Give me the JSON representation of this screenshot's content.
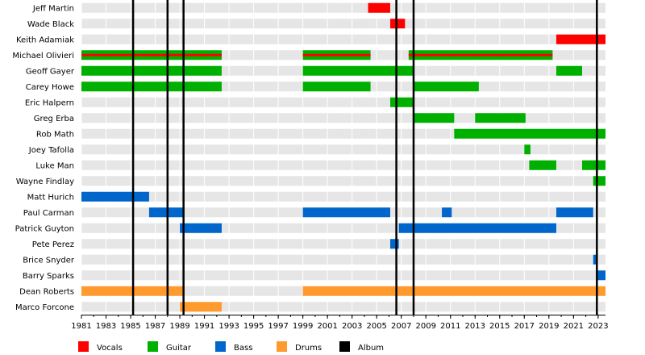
{
  "chart_data": {
    "type": "timeline",
    "title": "",
    "xlabel": "",
    "ylabel": "",
    "xlim": [
      1981,
      2023.6
    ],
    "x_ticks": [
      "1981",
      "1983",
      "1985",
      "1987",
      "1989",
      "1991",
      "1993",
      "1995",
      "1997",
      "1999",
      "2001",
      "2003",
      "2005",
      "2007",
      "2009",
      "2011",
      "2013",
      "2015",
      "2017",
      "2019",
      "2021",
      "2023"
    ],
    "members": [
      "Jeff Martin",
      "Wade Black",
      "Keith Adamiak",
      "Michael Olivieri",
      "Geoff Gayer",
      "Carey Howe",
      "Eric Halpern",
      "Greg Erba",
      "Rob Math",
      "Joey Tafolla",
      "Luke Man",
      "Wayne Findlay",
      "Matt Hurich",
      "Paul Carman",
      "Patrick Guyton",
      "Pete Perez",
      "Brice Snyder",
      "Barry Sparks",
      "Dean Roberts",
      "Marco Forcone"
    ],
    "roles": {
      "vocals": {
        "label": "Vocals",
        "color": "#ff0000"
      },
      "guitar": {
        "label": "Guitar",
        "color": "#00b000"
      },
      "bass": {
        "label": "Bass",
        "color": "#0066cc"
      },
      "drums": {
        "label": "Drums",
        "color": "#ff9a2e"
      },
      "album": {
        "label": "Album",
        "color": "#000000"
      }
    },
    "legend_order": [
      "vocals",
      "guitar",
      "bass",
      "drums",
      "album"
    ],
    "legend_position": "bottom",
    "albums": [
      1985.2,
      1988.0,
      1989.3,
      2006.6,
      2008.0,
      2022.9
    ],
    "bars": [
      {
        "member": 0,
        "role": "vocals",
        "start": 2004.3,
        "end": 2006.1
      },
      {
        "member": 1,
        "role": "vocals",
        "start": 2006.1,
        "end": 2007.3
      },
      {
        "member": 2,
        "role": "vocals",
        "start": 2019.6,
        "end": 2023.6
      },
      {
        "member": 3,
        "role": "guitar",
        "start": 1981.0,
        "end": 1992.4,
        "secondary": "vocals"
      },
      {
        "member": 3,
        "role": "guitar",
        "start": 1999.0,
        "end": 2004.5,
        "secondary": "vocals"
      },
      {
        "member": 3,
        "role": "guitar",
        "start": 2007.6,
        "end": 2019.3,
        "secondary": "vocals"
      },
      {
        "member": 4,
        "role": "guitar",
        "start": 1981.0,
        "end": 1992.4
      },
      {
        "member": 4,
        "role": "guitar",
        "start": 1999.0,
        "end": 2008.0
      },
      {
        "member": 4,
        "role": "guitar",
        "start": 2019.6,
        "end": 2021.7
      },
      {
        "member": 5,
        "role": "guitar",
        "start": 1981.0,
        "end": 1992.4
      },
      {
        "member": 5,
        "role": "guitar",
        "start": 1999.0,
        "end": 2004.5
      },
      {
        "member": 5,
        "role": "guitar",
        "start": 2008.0,
        "end": 2013.3
      },
      {
        "member": 6,
        "role": "guitar",
        "start": 2006.1,
        "end": 2008.0
      },
      {
        "member": 7,
        "role": "guitar",
        "start": 2008.0,
        "end": 2011.3
      },
      {
        "member": 7,
        "role": "guitar",
        "start": 2013.0,
        "end": 2017.1
      },
      {
        "member": 8,
        "role": "guitar",
        "start": 2011.3,
        "end": 2023.6
      },
      {
        "member": 9,
        "role": "guitar",
        "start": 2017.0,
        "end": 2017.5
      },
      {
        "member": 10,
        "role": "guitar",
        "start": 2017.4,
        "end": 2019.6
      },
      {
        "member": 10,
        "role": "guitar",
        "start": 2021.7,
        "end": 2023.6
      },
      {
        "member": 11,
        "role": "guitar",
        "start": 2022.6,
        "end": 2023.6
      },
      {
        "member": 12,
        "role": "bass",
        "start": 1981.0,
        "end": 1986.5
      },
      {
        "member": 13,
        "role": "bass",
        "start": 1986.5,
        "end": 1989.3
      },
      {
        "member": 13,
        "role": "bass",
        "start": 1999.0,
        "end": 2006.1
      },
      {
        "member": 13,
        "role": "bass",
        "start": 2010.3,
        "end": 2011.1
      },
      {
        "member": 13,
        "role": "bass",
        "start": 2019.6,
        "end": 2022.6
      },
      {
        "member": 14,
        "role": "bass",
        "start": 1989.0,
        "end": 1992.4
      },
      {
        "member": 14,
        "role": "bass",
        "start": 2006.8,
        "end": 2019.6
      },
      {
        "member": 15,
        "role": "bass",
        "start": 2006.1,
        "end": 2006.8
      },
      {
        "member": 16,
        "role": "bass",
        "start": 2022.6,
        "end": 2022.9
      },
      {
        "member": 17,
        "role": "bass",
        "start": 2022.9,
        "end": 2023.6
      },
      {
        "member": 18,
        "role": "drums",
        "start": 1981.0,
        "end": 1989.3
      },
      {
        "member": 18,
        "role": "drums",
        "start": 1999.0,
        "end": 2023.6
      },
      {
        "member": 19,
        "role": "drums",
        "start": 1989.0,
        "end": 1992.4
      }
    ]
  }
}
